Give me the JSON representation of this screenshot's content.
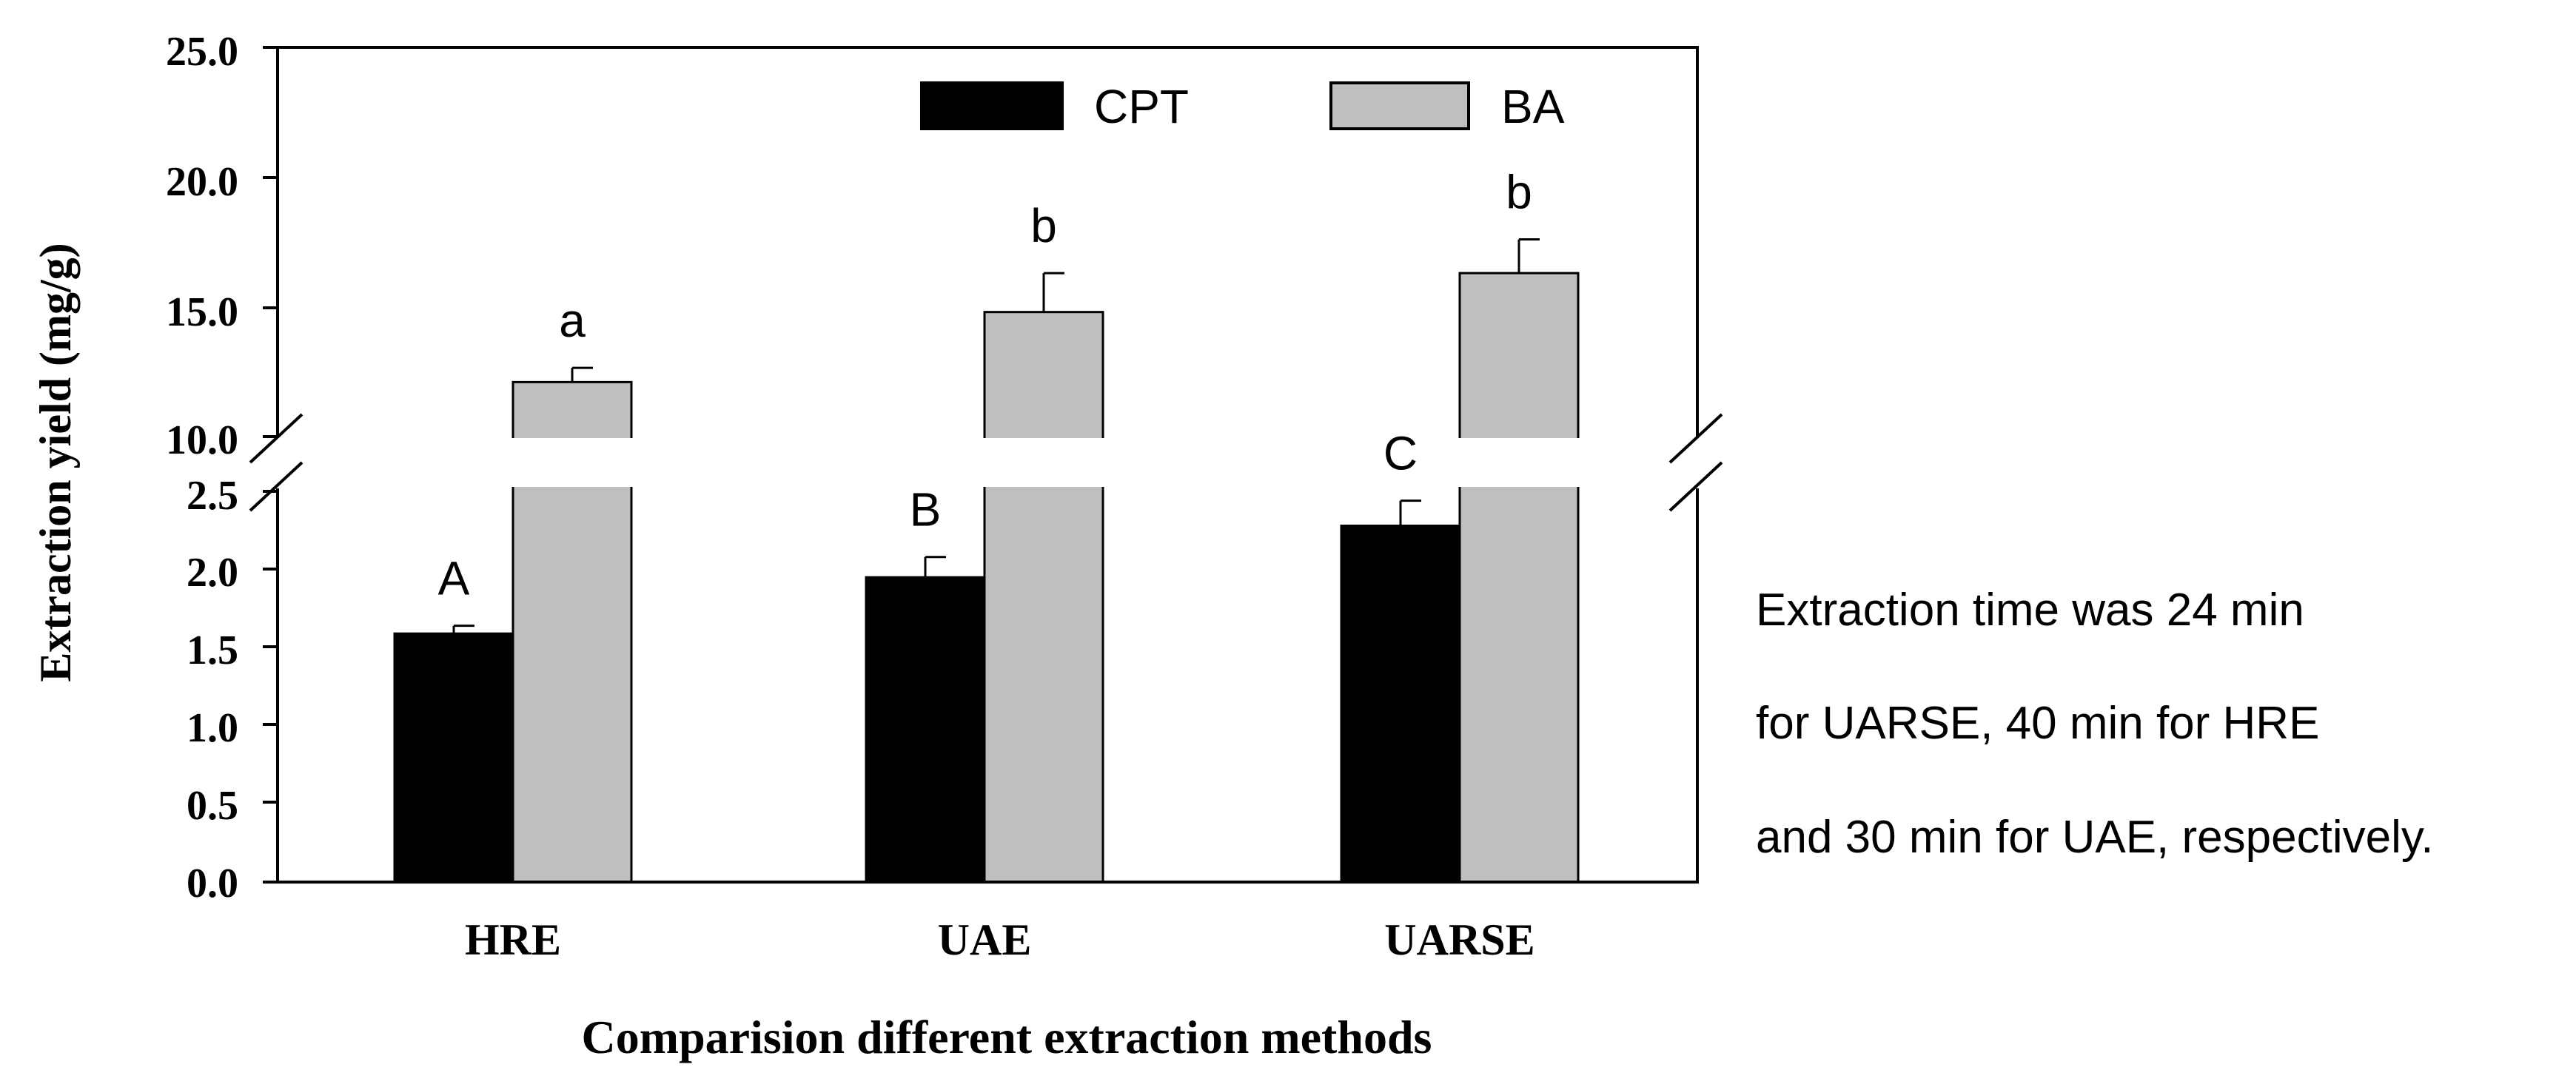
{
  "chart_data": {
    "type": "bar",
    "title": "",
    "xlabel": "Comparision different extraction methods",
    "ylabel": "Extraction yield (mg/g)",
    "categories": [
      "HRE",
      "UAE",
      "UARSE"
    ],
    "series": [
      {
        "name": "CPT",
        "color": "#000000",
        "values": [
          1.59,
          1.95,
          2.28
        ],
        "errors": [
          0.05,
          0.13,
          0.16
        ],
        "letters": [
          "A",
          "B",
          "C"
        ]
      },
      {
        "name": "BA",
        "color": "#bfbfbf",
        "values": [
          12.1,
          14.8,
          16.3
        ],
        "errors": [
          0.55,
          1.5,
          1.3
        ],
        "letters": [
          "a",
          "b",
          "b"
        ]
      }
    ],
    "axis_break": {
      "lower_range": [
        0,
        2.5
      ],
      "upper_range": [
        10,
        25
      ]
    },
    "lower_ticks": [
      "0.0",
      "0.5",
      "1.0",
      "1.5",
      "2.0",
      "2.5"
    ],
    "upper_ticks": [
      "10.0",
      "15.0",
      "20.0",
      "25.0"
    ],
    "legend_position": "top-center"
  },
  "annotation": {
    "lines": [
      "Extraction time was 24 min",
      "for UARSE, 40 min for HRE",
      "and 30 min for UAE, respectively."
    ]
  }
}
